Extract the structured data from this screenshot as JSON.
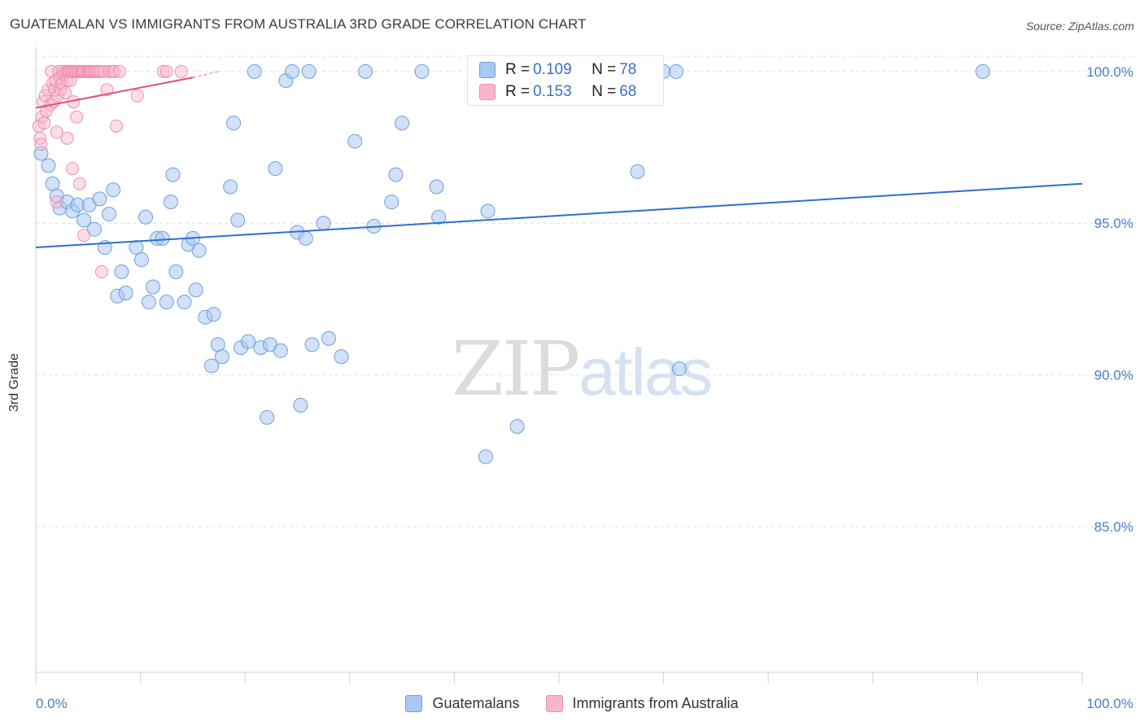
{
  "chart_title": "GUATEMALAN VS IMMIGRANTS FROM AUSTRALIA 3RD GRADE CORRELATION CHART",
  "source": "Source: ZipAtlas.com",
  "watermark": {
    "zip": "ZIP",
    "atlas": "atlas"
  },
  "stats": [
    {
      "r_label": "R = ",
      "r_value": "0.109",
      "n_label": "N = ",
      "n_value": "78",
      "color": "#a9c8f2"
    },
    {
      "r_label": "R = ",
      "r_value": "0.153",
      "n_label": "N = ",
      "n_value": "68",
      "color": "#f8b6cb"
    }
  ],
  "legend": [
    {
      "label": "Guatemalans",
      "color": "#a9c8f2"
    },
    {
      "label": "Immigrants from Australia",
      "color": "#f8b6cb"
    }
  ],
  "chart_data": {
    "type": "scatter",
    "title": "GUATEMALAN VS IMMIGRANTS FROM AUSTRALIA 3RD GRADE CORRELATION CHART",
    "xlabel": "",
    "ylabel": "3rd Grade",
    "xlim": [
      0,
      100
    ],
    "ylim": [
      80.2,
      100.8
    ],
    "x_tick_labels": [
      "0.0%",
      "100.0%"
    ],
    "y_ticks": [
      85,
      90,
      95,
      100
    ],
    "y_tick_labels": [
      "85.0%",
      "90.0%",
      "95.0%",
      "100.0%"
    ],
    "grid": true,
    "legend_position": "bottom-center",
    "series": [
      {
        "name": "Guatemalans",
        "color": "#a9c8f2",
        "stroke": "#6f9fdc",
        "trend_color": "#2f6fcb",
        "trend": {
          "x": [
            0,
            100
          ],
          "y": [
            94.2,
            96.3
          ]
        },
        "points": [
          [
            0.5,
            97.3
          ],
          [
            1.2,
            96.9
          ],
          [
            1.6,
            96.3
          ],
          [
            2.0,
            95.9
          ],
          [
            2.3,
            95.5
          ],
          [
            3.0,
            95.7
          ],
          [
            3.5,
            95.4
          ],
          [
            4.0,
            95.6
          ],
          [
            4.6,
            95.1
          ],
          [
            5.1,
            95.6
          ],
          [
            5.6,
            94.8
          ],
          [
            6.1,
            95.8
          ],
          [
            6.6,
            94.2
          ],
          [
            7.0,
            95.3
          ],
          [
            7.4,
            96.1
          ],
          [
            7.8,
            92.6
          ],
          [
            8.2,
            93.4
          ],
          [
            8.6,
            92.7
          ],
          [
            9.6,
            94.2
          ],
          [
            10.1,
            93.8
          ],
          [
            10.5,
            95.2
          ],
          [
            10.8,
            92.4
          ],
          [
            11.2,
            92.9
          ],
          [
            11.6,
            94.5
          ],
          [
            12.1,
            94.5
          ],
          [
            12.5,
            92.4
          ],
          [
            12.9,
            95.7
          ],
          [
            13.1,
            96.6
          ],
          [
            13.4,
            93.4
          ],
          [
            14.2,
            92.4
          ],
          [
            14.6,
            94.3
          ],
          [
            15.0,
            94.5
          ],
          [
            15.3,
            92.8
          ],
          [
            15.6,
            94.1
          ],
          [
            16.2,
            91.9
          ],
          [
            17.0,
            92.0
          ],
          [
            17.4,
            91.0
          ],
          [
            17.8,
            90.6
          ],
          [
            16.8,
            90.3
          ],
          [
            18.6,
            96.2
          ],
          [
            18.9,
            98.3
          ],
          [
            19.3,
            95.1
          ],
          [
            19.6,
            90.9
          ],
          [
            20.3,
            91.1
          ],
          [
            20.9,
            100.0
          ],
          [
            21.5,
            90.9
          ],
          [
            22.1,
            88.6
          ],
          [
            22.4,
            91.0
          ],
          [
            22.9,
            96.8
          ],
          [
            23.4,
            90.8
          ],
          [
            23.9,
            99.7
          ],
          [
            24.5,
            100.0
          ],
          [
            25.0,
            94.7
          ],
          [
            25.3,
            89.0
          ],
          [
            25.8,
            94.5
          ],
          [
            26.1,
            100.0
          ],
          [
            26.4,
            91.0
          ],
          [
            27.5,
            95.0
          ],
          [
            28.0,
            91.2
          ],
          [
            29.2,
            90.6
          ],
          [
            30.5,
            97.7
          ],
          [
            31.5,
            100.0
          ],
          [
            32.3,
            94.9
          ],
          [
            34.0,
            95.7
          ],
          [
            34.4,
            96.6
          ],
          [
            35.0,
            98.3
          ],
          [
            36.9,
            100.0
          ],
          [
            38.3,
            96.2
          ],
          [
            38.5,
            95.2
          ],
          [
            43.0,
            87.3
          ],
          [
            43.2,
            95.4
          ],
          [
            46.0,
            88.3
          ],
          [
            57.5,
            96.7
          ],
          [
            58.5,
            100.0
          ],
          [
            60.0,
            100.0
          ],
          [
            61.2,
            100.0
          ],
          [
            61.5,
            90.2
          ],
          [
            90.5,
            100.0
          ]
        ]
      },
      {
        "name": "Immigrants from Australia",
        "color": "#f8b6cb",
        "stroke": "#ee8fae",
        "trend_color": "#e0507c",
        "trend": {
          "x": [
            0,
            15
          ],
          "y": [
            98.8,
            99.8
          ]
        },
        "trend_dashed": {
          "x": [
            15,
            17.5
          ],
          "y": [
            99.8,
            100.0
          ]
        },
        "points": [
          [
            0.3,
            98.2
          ],
          [
            0.4,
            97.8
          ],
          [
            0.5,
            97.6
          ],
          [
            0.6,
            98.5
          ],
          [
            0.7,
            99.0
          ],
          [
            0.8,
            98.3
          ],
          [
            0.9,
            99.2
          ],
          [
            1.0,
            98.7
          ],
          [
            1.2,
            99.4
          ],
          [
            1.4,
            98.9
          ],
          [
            1.5,
            100.0
          ],
          [
            1.6,
            99.6
          ],
          [
            1.7,
            99.0
          ],
          [
            1.8,
            99.4
          ],
          [
            1.9,
            99.7
          ],
          [
            2.0,
            95.7
          ],
          [
            2.0,
            98.0
          ],
          [
            2.1,
            99.2
          ],
          [
            2.2,
            100.0
          ],
          [
            2.3,
            99.8
          ],
          [
            2.4,
            99.4
          ],
          [
            2.5,
            99.6
          ],
          [
            2.6,
            100.0
          ],
          [
            2.7,
            99.9
          ],
          [
            2.8,
            99.3
          ],
          [
            2.9,
            100.0
          ],
          [
            3.0,
            99.7
          ],
          [
            3.0,
            97.8
          ],
          [
            3.1,
            100.0
          ],
          [
            3.2,
            100.0
          ],
          [
            3.3,
            99.7
          ],
          [
            3.4,
            100.0
          ],
          [
            3.5,
            100.0
          ],
          [
            3.5,
            96.8
          ],
          [
            3.6,
            99.0
          ],
          [
            3.7,
            100.0
          ],
          [
            3.8,
            100.0
          ],
          [
            3.9,
            98.5
          ],
          [
            4.0,
            100.0
          ],
          [
            4.1,
            100.0
          ],
          [
            4.2,
            96.3
          ],
          [
            4.3,
            100.0
          ],
          [
            4.4,
            100.0
          ],
          [
            4.5,
            100.0
          ],
          [
            4.6,
            100.0
          ],
          [
            4.6,
            94.6
          ],
          [
            4.8,
            100.0
          ],
          [
            5.0,
            100.0
          ],
          [
            5.1,
            100.0
          ],
          [
            5.2,
            100.0
          ],
          [
            5.3,
            100.0
          ],
          [
            5.5,
            100.0
          ],
          [
            5.6,
            100.0
          ],
          [
            5.8,
            100.0
          ],
          [
            6.0,
            100.0
          ],
          [
            6.2,
            100.0
          ],
          [
            6.3,
            93.4
          ],
          [
            6.5,
            100.0
          ],
          [
            6.8,
            99.4
          ],
          [
            7.0,
            100.0
          ],
          [
            7.3,
            100.0
          ],
          [
            7.5,
            100.0
          ],
          [
            7.7,
            98.2
          ],
          [
            8.0,
            100.0
          ],
          [
            9.7,
            99.2
          ],
          [
            12.2,
            100.0
          ],
          [
            12.5,
            100.0
          ],
          [
            13.9,
            100.0
          ]
        ]
      }
    ]
  }
}
